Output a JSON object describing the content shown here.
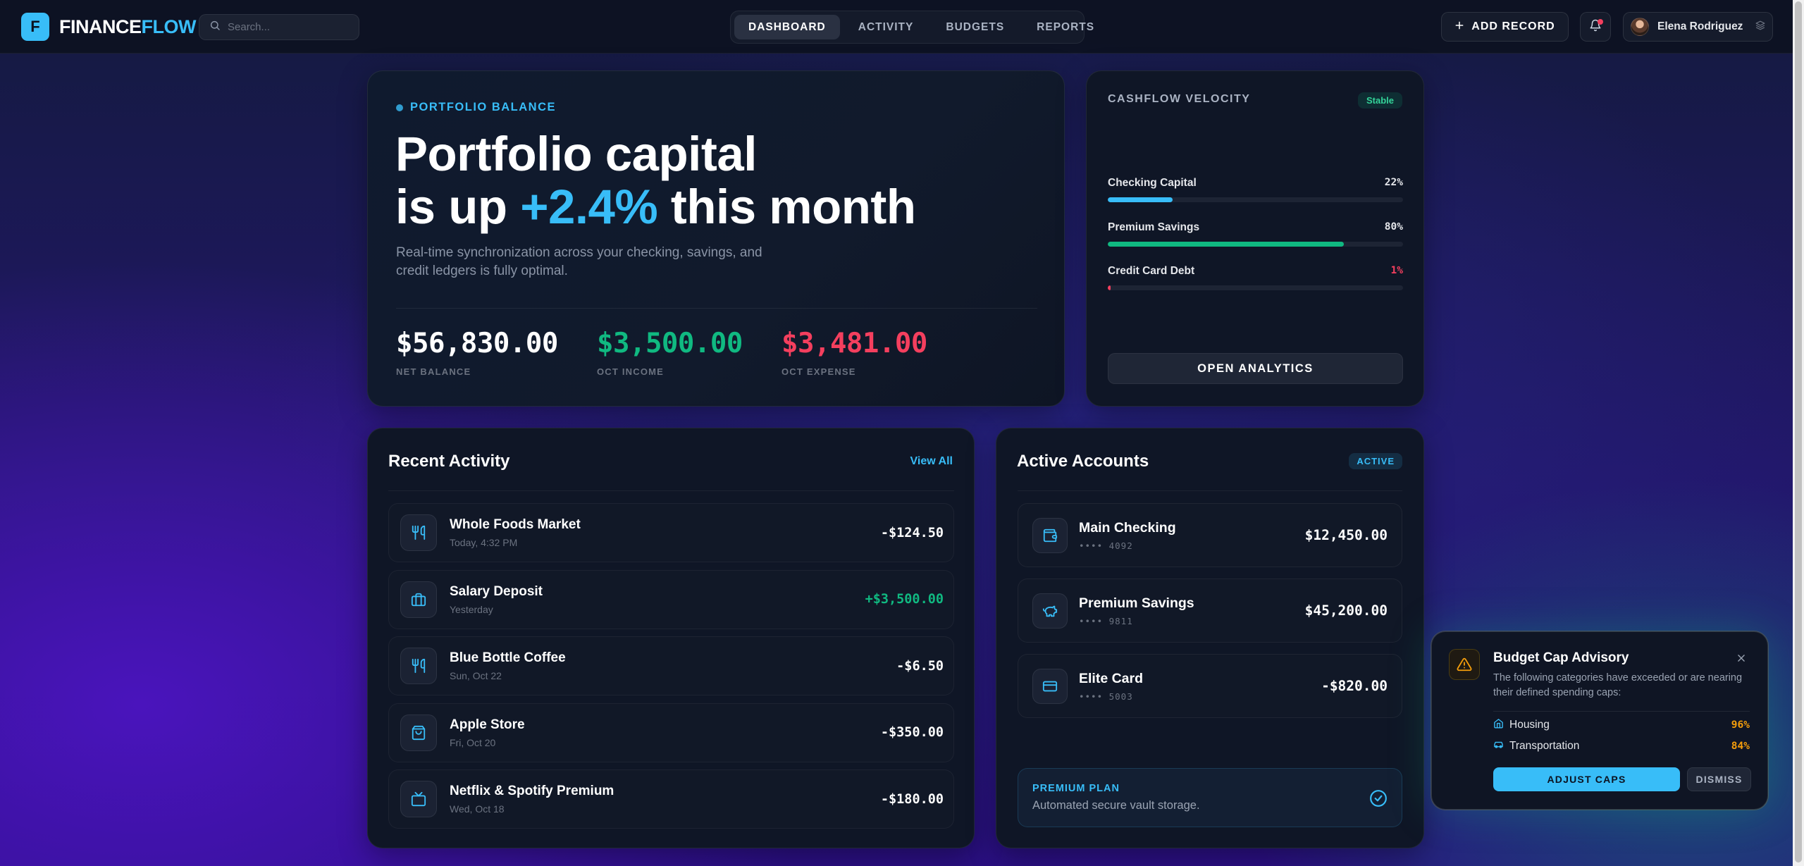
{
  "header": {
    "logo_letter": "F",
    "logo_text_primary": "FINANCE",
    "logo_text_accent": "FLOW",
    "search_placeholder": "Search...",
    "nav_tabs": [
      {
        "label": "DASHBOARD",
        "active": true
      },
      {
        "label": "ACTIVITY",
        "active": false
      },
      {
        "label": "BUDGETS",
        "active": false
      },
      {
        "label": "REPORTS",
        "active": false
      }
    ],
    "add_record_label": "ADD RECORD",
    "user_name": "Elena Rodriguez",
    "icons": {
      "search": "search-icon",
      "add": "plus-icon",
      "notifications": "bell-icon",
      "user_menu": "layers-icon"
    }
  },
  "hero": {
    "eyebrow": "PORTFOLIO BALANCE",
    "title_line1": "Portfolio capital",
    "title_line2_prefix": "is up ",
    "title_highlight": "+2.4%",
    "title_line2_suffix": " this month",
    "subtitle": "Real-time synchronization across your checking, savings, and credit ledgers is fully optimal.",
    "stats": [
      {
        "value": "$56,830.00",
        "label": "NET BALANCE",
        "color": "#ffffff"
      },
      {
        "value": "$3,500.00",
        "label": "OCT INCOME",
        "color": "#10b981"
      },
      {
        "value": "$3,481.00",
        "label": "OCT EXPENSE",
        "color": "#f43f5e"
      }
    ]
  },
  "velocity": {
    "title": "CASHFLOW VELOCITY",
    "badge": "Stable",
    "bars": [
      {
        "name": "Checking Capital",
        "value_text": "22%",
        "fraction": 0.22,
        "color": "#38bdf8",
        "value_color": "#e5e7eb"
      },
      {
        "name": "Premium Savings",
        "value_text": "80%",
        "fraction": 0.8,
        "color": "#10b981",
        "value_color": "#e5e7eb"
      },
      {
        "name": "Credit Card Debt",
        "value_text": "1%",
        "fraction": 0.01,
        "color": "#f43f5e",
        "value_color": "#f43f5e"
      }
    ],
    "button_label": "OPEN ANALYTICS"
  },
  "activity": {
    "title": "Recent Activity",
    "view_all": "View All",
    "transactions": [
      {
        "name": "Whole Foods Market",
        "date": "Today, 4:32 PM",
        "amount": "-$124.50",
        "positive": false,
        "icon": "utensils-icon"
      },
      {
        "name": "Salary Deposit",
        "date": "Yesterday",
        "amount": "+$3,500.00",
        "positive": true,
        "icon": "briefcase-icon"
      },
      {
        "name": "Blue Bottle Coffee",
        "date": "Sun, Oct 22",
        "amount": "-$6.50",
        "positive": false,
        "icon": "utensils-icon"
      },
      {
        "name": "Apple Store",
        "date": "Fri, Oct 20",
        "amount": "-$350.00",
        "positive": false,
        "icon": "shopping-bag-icon"
      },
      {
        "name": "Netflix & Spotify Premium",
        "date": "Wed, Oct 18",
        "amount": "-$180.00",
        "positive": false,
        "icon": "tv-icon"
      }
    ]
  },
  "accounts": {
    "title": "Active Accounts",
    "badge": "ACTIVE",
    "items": [
      {
        "name": "Main Checking",
        "mask": "•••• 4092",
        "balance": "$12,450.00",
        "icon": "wallet-icon"
      },
      {
        "name": "Premium Savings",
        "mask": "•••• 9811",
        "balance": "$45,200.00",
        "icon": "piggy-bank-icon"
      },
      {
        "name": "Elite Card",
        "mask": "•••• 5003",
        "balance": "-$820.00",
        "icon": "credit-card-icon"
      }
    ],
    "premium_label": "PREMIUM PLAN",
    "premium_desc": "Automated secure vault storage."
  },
  "advisory": {
    "title": "Budget Cap Advisory",
    "description": "The following categories have exceeded or are nearing their defined spending caps:",
    "categories": [
      {
        "name": "Housing",
        "percent": "96%",
        "icon": "home-icon"
      },
      {
        "name": "Transportation",
        "percent": "84%",
        "icon": "car-icon"
      }
    ],
    "adjust_label": "ADJUST CAPS",
    "dismiss_label": "DISMISS"
  }
}
